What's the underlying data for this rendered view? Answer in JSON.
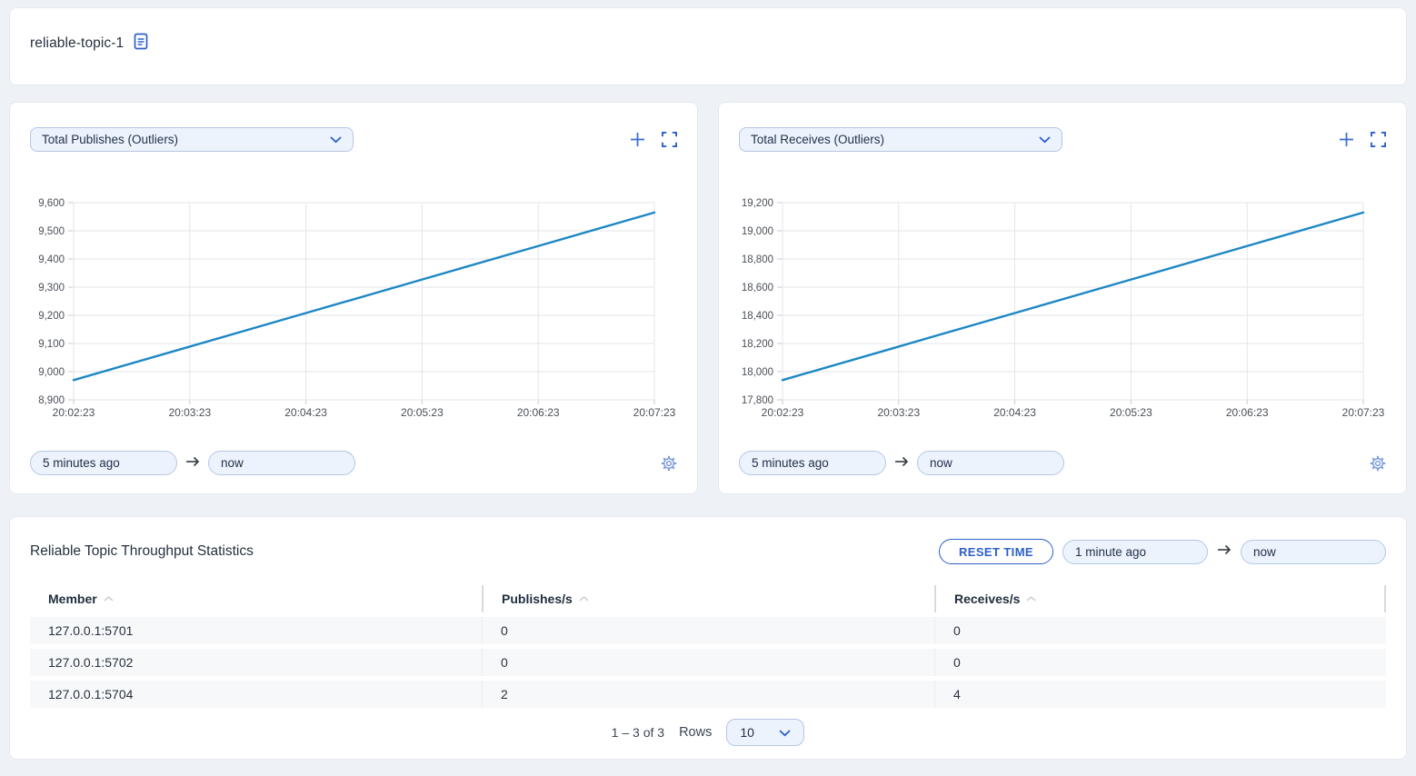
{
  "page": {
    "title": "reliable-topic-1"
  },
  "colors": {
    "accent_blue": "#2c5fc9",
    "line_blue": "#1d87c4",
    "control_bg": "#edf3fc",
    "control_border": "#b6c5e4",
    "page_bg": "#eef1f6",
    "row_bg": "#f7f8f9"
  },
  "icons": {
    "document": "doc-icon",
    "chevron_down": "chevron-down-icon",
    "plus": "plus-icon",
    "expand": "expand-icon",
    "arrow_right": "arrow-right-icon",
    "gear": "gear-icon",
    "sort_caret": "sort-up-icon"
  },
  "charts": [
    {
      "selector_label": "Total Publishes (Outliers)",
      "time_from": "5 minutes ago",
      "time_to": "now"
    },
    {
      "selector_label": "Total Receives (Outliers)",
      "time_from": "5 minutes ago",
      "time_to": "now"
    }
  ],
  "chart_data": [
    {
      "type": "line",
      "title": "Total Publishes (Outliers)",
      "x": [
        "20:02:23",
        "20:03:23",
        "20:04:23",
        "20:05:23",
        "20:06:23",
        "20:07:23"
      ],
      "values": [
        8970,
        9089,
        9208,
        9327,
        9446,
        9565
      ],
      "ylim": [
        8900,
        9600
      ],
      "yticks": [
        8900,
        9000,
        9100,
        9200,
        9300,
        9400,
        9500,
        9600
      ],
      "line_color": "#1d87c4",
      "grid": true,
      "legend": false,
      "xlabel": "",
      "ylabel": ""
    },
    {
      "type": "line",
      "title": "Total Receives (Outliers)",
      "x": [
        "20:02:23",
        "20:03:23",
        "20:04:23",
        "20:05:23",
        "20:06:23",
        "20:07:23"
      ],
      "values": [
        17940,
        18178,
        18416,
        18654,
        18892,
        19130
      ],
      "ylim": [
        17800,
        19200
      ],
      "yticks": [
        17800,
        18000,
        18200,
        18400,
        18600,
        18800,
        19000,
        19200
      ],
      "line_color": "#1d87c4",
      "grid": true,
      "legend": false,
      "xlabel": "",
      "ylabel": ""
    }
  ],
  "stats_table": {
    "title": "Reliable Topic Throughput Statistics",
    "reset_button": "RESET TIME",
    "time_from": "1 minute ago",
    "time_to": "now",
    "columns": [
      "Member",
      "Publishes/s",
      "Receives/s"
    ],
    "rows": [
      [
        "127.0.0.1:5701",
        "0",
        "0"
      ],
      [
        "127.0.0.1:5702",
        "0",
        "0"
      ],
      [
        "127.0.0.1:5704",
        "2",
        "4"
      ]
    ],
    "pagination": {
      "range": "1 – 3 of 3",
      "rows_label": "Rows",
      "rows_per_page": "10"
    }
  }
}
